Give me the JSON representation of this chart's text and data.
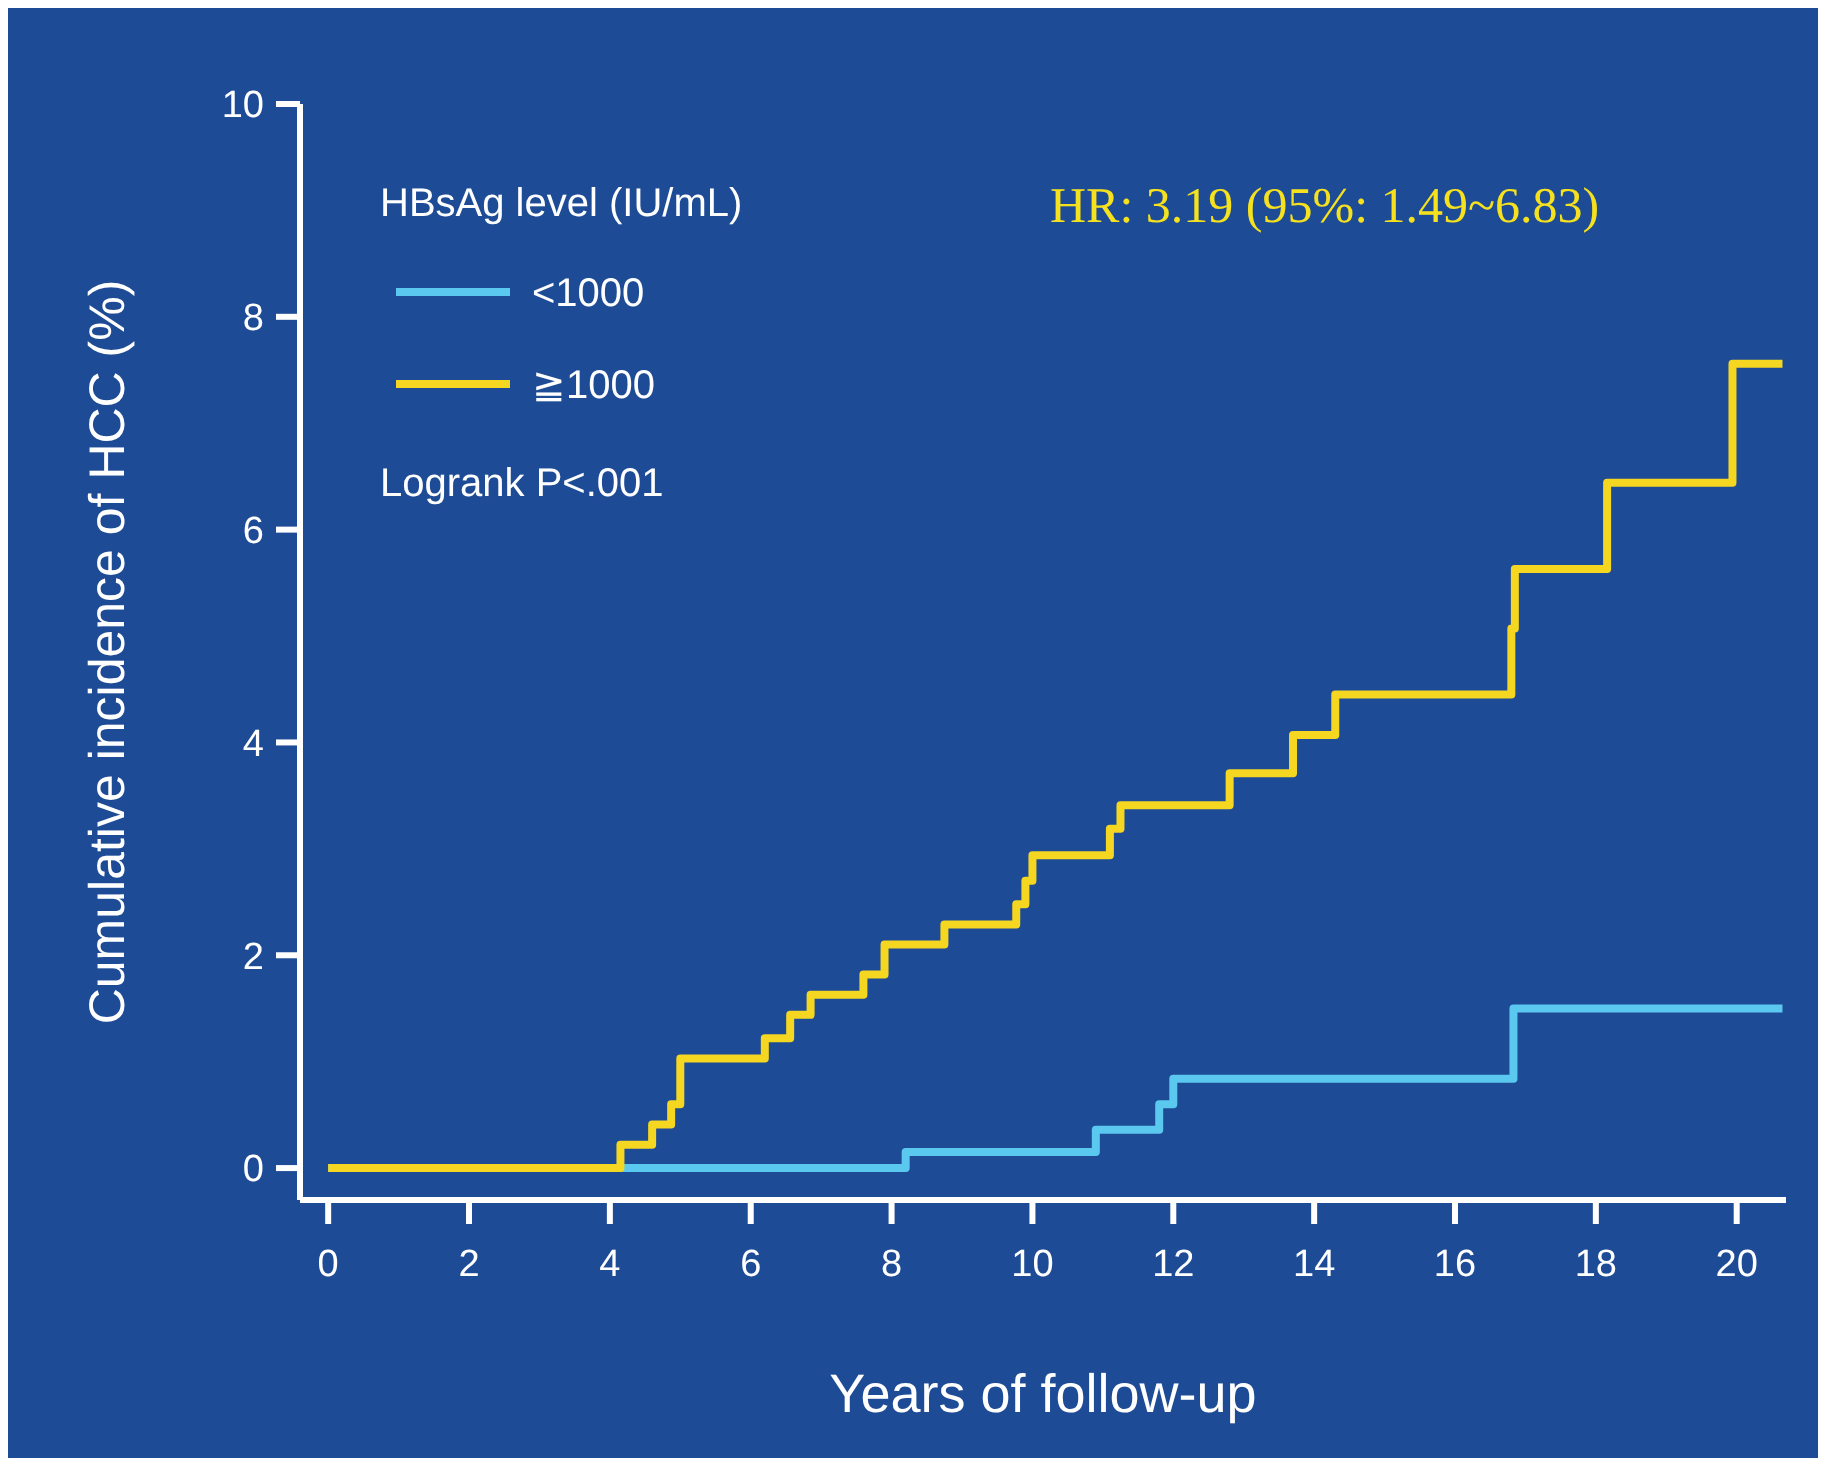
{
  "chart_data": {
    "type": "step",
    "xlabel": "Years of follow-up",
    "ylabel": "Cumulative incidence of HCC (%)",
    "legend_title": "HBsAg level (IU/mL)",
    "legend": "top left",
    "annotations": [
      "Logrank P<.001",
      "HR: 3.19 (95%: 1.49~6.83)"
    ],
    "xlim": [
      -0.4,
      20.7
    ],
    "xticks": [
      0,
      2,
      4,
      6,
      8,
      10,
      12,
      14,
      16,
      18,
      20
    ],
    "ylim": [
      -0.3,
      10
    ],
    "yticks": [
      0,
      2,
      4,
      6,
      8,
      10
    ],
    "grid": false,
    "marker": "none",
    "line_style": "solid",
    "series": [
      {
        "name": "<1000",
        "color": "#5bc8f0",
        "x": [
          0,
          8.2,
          10.9,
          11.8,
          12.0,
          16.83,
          20.65
        ],
        "values": [
          0,
          0.15,
          0.36,
          0.6,
          0.84,
          1.5,
          1.5
        ]
      },
      {
        "name": "≧1000",
        "color": "#f5d620",
        "x": [
          0,
          4.15,
          4.6,
          4.87,
          5.0,
          6.2,
          6.56,
          6.85,
          7.6,
          7.9,
          8.75,
          9.77,
          9.9,
          10.0,
          11.1,
          11.25,
          12.8,
          13.7,
          14.3,
          16.8,
          16.85,
          18.16,
          19.94,
          20.65
        ],
        "values": [
          0,
          0.22,
          0.41,
          0.6,
          1.03,
          1.22,
          1.44,
          1.63,
          1.82,
          2.1,
          2.29,
          2.48,
          2.7,
          2.94,
          3.19,
          3.41,
          3.71,
          4.07,
          4.45,
          5.07,
          5.63,
          6.44,
          7.56,
          7.56
        ]
      }
    ]
  }
}
